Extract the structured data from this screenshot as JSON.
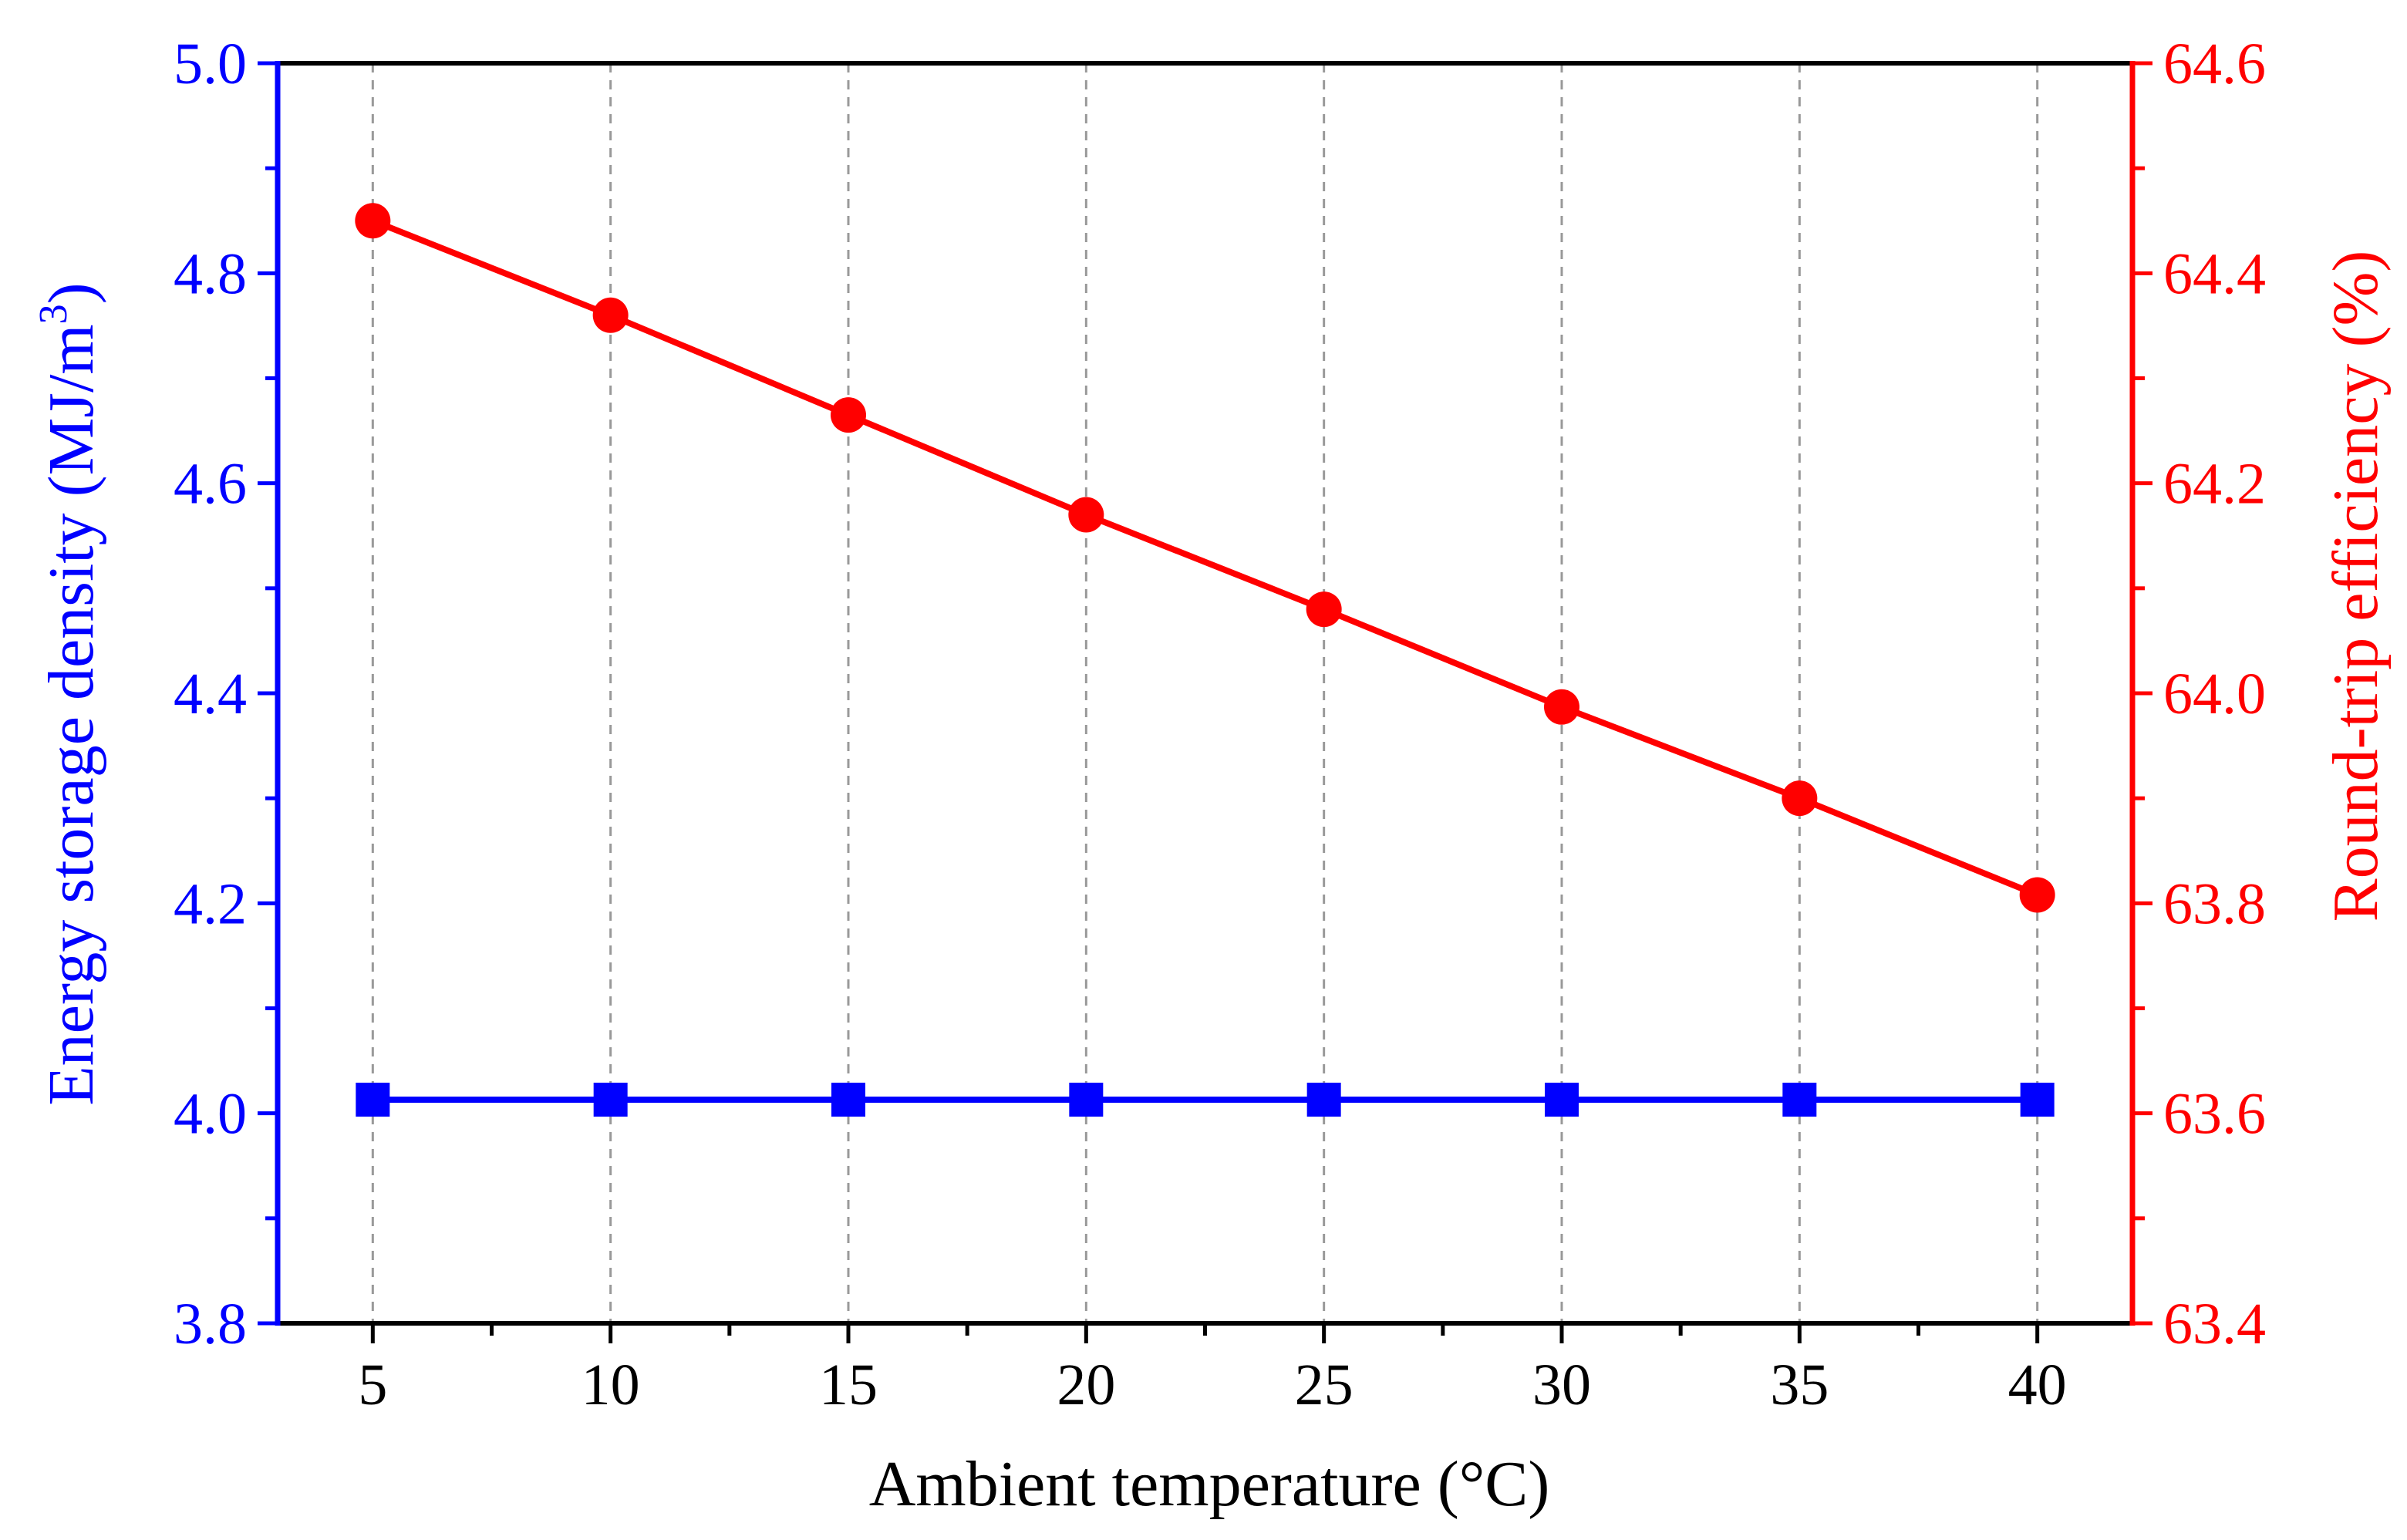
{
  "chart_data": {
    "type": "line",
    "title": "",
    "xlabel": "Ambient temperature (°C)",
    "x": [
      5,
      10,
      15,
      20,
      25,
      30,
      35,
      40
    ],
    "xlim": [
      3,
      42
    ],
    "x_ticks": [
      "5",
      "10",
      "15",
      "20",
      "25",
      "30",
      "35",
      "40"
    ],
    "grid": "vertical dashed",
    "series": [
      {
        "name": "Energy storage density",
        "axis": "left",
        "marker": "square",
        "color": "#0000ff",
        "values": [
          4.013,
          4.013,
          4.013,
          4.013,
          4.013,
          4.013,
          4.013,
          4.013
        ]
      },
      {
        "name": "Round-trip efficiency",
        "axis": "right",
        "marker": "circle",
        "color": "#ff0000",
        "values": [
          64.45,
          64.36,
          64.265,
          64.17,
          64.08,
          63.987,
          63.9,
          63.808
        ]
      }
    ],
    "y_left": {
      "label_prefix": "Energy storage density (MJ/m",
      "label_superscript": "3",
      "label_suffix": ")",
      "ylim": [
        3.8,
        5.0
      ],
      "ticks": [
        "3.8",
        "4.0",
        "4.2",
        "4.4",
        "4.6",
        "4.8",
        "5.0"
      ],
      "color": "#0000ff"
    },
    "y_right": {
      "label": "Round-trip efficiency (%)",
      "ylim": [
        63.4,
        64.6
      ],
      "ticks": [
        "63.4",
        "63.6",
        "63.8",
        "64.0",
        "64.2",
        "64.4",
        "64.6"
      ],
      "color": "#ff0000"
    }
  }
}
